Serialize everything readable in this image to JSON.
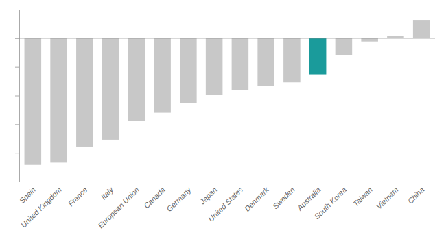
{
  "chart_data": {
    "type": "bar",
    "categories": [
      "Spain",
      "United Kingdom",
      "France",
      "Italy",
      "European Union",
      "Canada",
      "Germany",
      "Japan",
      "United States",
      "Denmark",
      "Sweden",
      "Australia",
      "South Korea",
      "Taiwan",
      "Vietnam",
      "China"
    ],
    "values": [
      -22.1,
      -21.7,
      -18.9,
      -17.7,
      -14.4,
      -13.0,
      -11.3,
      -9.9,
      -9.1,
      -8.3,
      -7.7,
      -6.3,
      -2.9,
      -0.58,
      0.36,
      3.2
    ],
    "colors": [
      "#c8c8c8",
      "#c8c8c8",
      "#c8c8c8",
      "#c8c8c8",
      "#c8c8c8",
      "#c8c8c8",
      "#c8c8c8",
      "#c8c8c8",
      "#c8c8c8",
      "#c8c8c8",
      "#c8c8c8",
      "#1a9b9b",
      "#c8c8c8",
      "#c8c8c8",
      "#c8c8c8",
      "#c8c8c8"
    ],
    "ylim": [
      -25,
      5
    ],
    "yticks": [
      -25,
      -20,
      -15,
      -10,
      -5,
      0,
      5
    ],
    "tick_labels": "x"
  }
}
